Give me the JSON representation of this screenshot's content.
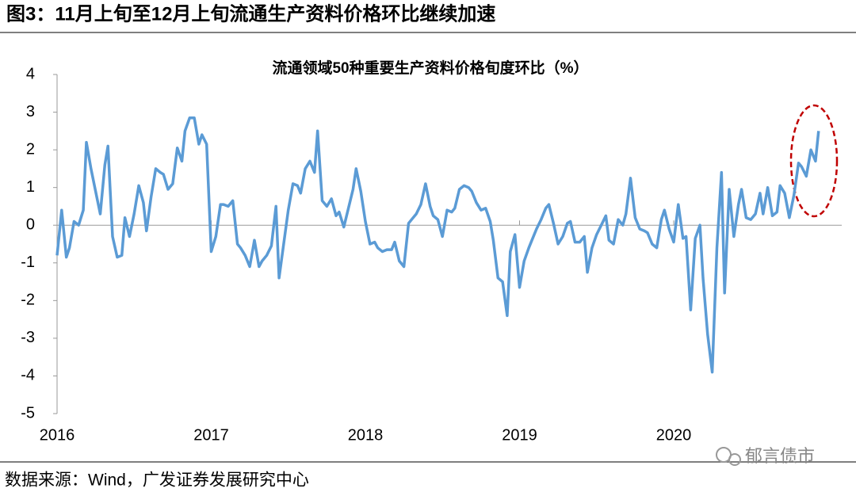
{
  "header": {
    "title": "图3：11月上旬至12月上旬流通生产资料价格环比继续加速"
  },
  "chart_data": {
    "type": "line",
    "title": "流通领域50种重要生产资料价格旬度环比（%）",
    "color": "#5b9bd5",
    "x": [
      2016,
      2016.03,
      2016.06,
      2016.08,
      2016.11,
      2016.14,
      2016.17,
      2016.19,
      2016.22,
      2016.25,
      2016.28,
      2016.31,
      2016.33,
      2016.36,
      2016.39,
      2016.42,
      2016.44,
      2016.47,
      2016.5,
      2016.53,
      2016.56,
      2016.58,
      2016.61,
      2016.64,
      2016.67,
      2016.69,
      2016.72,
      2016.75,
      2016.78,
      2016.81,
      2016.83,
      2016.86,
      2016.89,
      2016.92,
      2016.94,
      2016.97,
      2017,
      2017.03,
      2017.06,
      2017.08,
      2017.11,
      2017.14,
      2017.17,
      2017.19,
      2017.22,
      2017.25,
      2017.28,
      2017.31,
      2017.33,
      2017.36,
      2017.39,
      2017.42,
      2017.44,
      2017.47,
      2017.5,
      2017.53,
      2017.56,
      2017.58,
      2017.61,
      2017.64,
      2017.67,
      2017.69,
      2017.72,
      2017.75,
      2017.78,
      2017.81,
      2017.83,
      2017.86,
      2017.89,
      2017.92,
      2017.94,
      2017.97,
      2018,
      2018.03,
      2018.06,
      2018.08,
      2018.11,
      2018.14,
      2018.17,
      2018.19,
      2018.22,
      2018.25,
      2018.28,
      2018.31,
      2018.33,
      2018.36,
      2018.39,
      2018.42,
      2018.44,
      2018.47,
      2018.5,
      2018.53,
      2018.56,
      2018.58,
      2018.61,
      2018.64,
      2018.67,
      2018.69,
      2018.72,
      2018.75,
      2018.78,
      2018.81,
      2018.83,
      2018.86,
      2018.89,
      2018.92,
      2018.94,
      2018.97,
      2019,
      2019.03,
      2019.06,
      2019.08,
      2019.11,
      2019.14,
      2019.17,
      2019.19,
      2019.22,
      2019.25,
      2019.28,
      2019.31,
      2019.33,
      2019.36,
      2019.39,
      2019.42,
      2019.44,
      2019.47,
      2019.5,
      2019.53,
      2019.56,
      2019.58,
      2019.61,
      2019.64,
      2019.67,
      2019.69,
      2019.72,
      2019.75,
      2019.78,
      2019.81,
      2019.83,
      2019.86,
      2019.89,
      2019.92,
      2019.94,
      2019.97,
      2020,
      2020.03,
      2020.06,
      2020.08,
      2020.11,
      2020.14,
      2020.17,
      2020.19,
      2020.22,
      2020.25,
      2020.28,
      2020.31,
      2020.33,
      2020.36,
      2020.39,
      2020.42,
      2020.44,
      2020.47,
      2020.5,
      2020.53,
      2020.56,
      2020.58,
      2020.61,
      2020.64,
      2020.67,
      2020.69,
      2020.72,
      2020.75,
      2020.78,
      2020.81,
      2020.83,
      2020.86,
      2020.89,
      2020.92,
      2020.94
    ],
    "values": [
      -0.8,
      0.4,
      -0.85,
      -0.6,
      0.1,
      0.0,
      0.4,
      2.2,
      1.5,
      0.9,
      0.3,
      1.6,
      2.1,
      -0.3,
      -0.85,
      -0.8,
      0.2,
      -0.3,
      0.3,
      1.05,
      0.6,
      -0.15,
      0.75,
      1.5,
      1.4,
      1.35,
      0.95,
      1.1,
      2.05,
      1.7,
      2.5,
      2.85,
      2.85,
      2.15,
      2.4,
      2.15,
      -0.7,
      -0.3,
      0.55,
      0.55,
      0.5,
      0.65,
      -0.5,
      -0.6,
      -0.8,
      -1.1,
      -0.4,
      -1.1,
      -0.95,
      -0.8,
      -0.55,
      0.5,
      -1.4,
      -0.5,
      0.4,
      1.1,
      1.05,
      0.85,
      1.5,
      1.7,
      1.4,
      2.5,
      0.65,
      0.5,
      0.7,
      0.25,
      0.35,
      -0.05,
      0.45,
      0.95,
      1.5,
      0.9,
      0.1,
      -0.5,
      -0.45,
      -0.6,
      -0.7,
      -0.65,
      -0.65,
      -0.45,
      -0.95,
      -1.1,
      0.05,
      0.2,
      0.3,
      0.55,
      1.1,
      0.5,
      0.25,
      0.15,
      -0.3,
      0.4,
      0.35,
      0.45,
      0.95,
      1.05,
      1.0,
      0.9,
      0.6,
      0.4,
      0.45,
      0.1,
      -0.4,
      -1.4,
      -1.5,
      -2.4,
      -0.7,
      -0.25,
      -1.65,
      -0.95,
      -0.6,
      -0.4,
      -0.1,
      0.15,
      0.45,
      0.55,
      0.05,
      -0.5,
      -0.3,
      0.05,
      0.1,
      -0.45,
      -0.45,
      -0.3,
      -1.25,
      -0.6,
      -0.25,
      0.0,
      0.25,
      -0.4,
      -0.5,
      0.15,
      0.0,
      0.3,
      1.25,
      0.2,
      -0.1,
      -0.15,
      -0.2,
      -0.5,
      -0.6,
      0.15,
      0.4,
      -0.1,
      -0.45,
      0.55,
      -0.35,
      -0.3,
      -2.25,
      -0.35,
      0.0,
      -1.4,
      -2.9,
      -3.9,
      -0.6,
      1.4,
      -1.8,
      0.95,
      -0.3,
      0.55,
      0.95,
      0.2,
      0.15,
      0.3,
      0.85,
      0.3,
      1.0,
      0.25,
      0.35,
      1.05,
      0.85,
      0.2,
      0.8,
      1.65,
      1.55,
      1.3,
      2.0,
      1.7,
      2.5
    ],
    "xlim": [
      2016,
      2021.09
    ],
    "xticks": [
      2016,
      2017,
      2018,
      2019,
      2020
    ],
    "ylim": [
      -5,
      4
    ],
    "yticks": [
      -5,
      -4,
      -3,
      -2,
      -1,
      0,
      1,
      2,
      3,
      4
    ]
  },
  "source": "数据来源：Wind，广发证券发展研究中心",
  "watermark": "郁言债市"
}
